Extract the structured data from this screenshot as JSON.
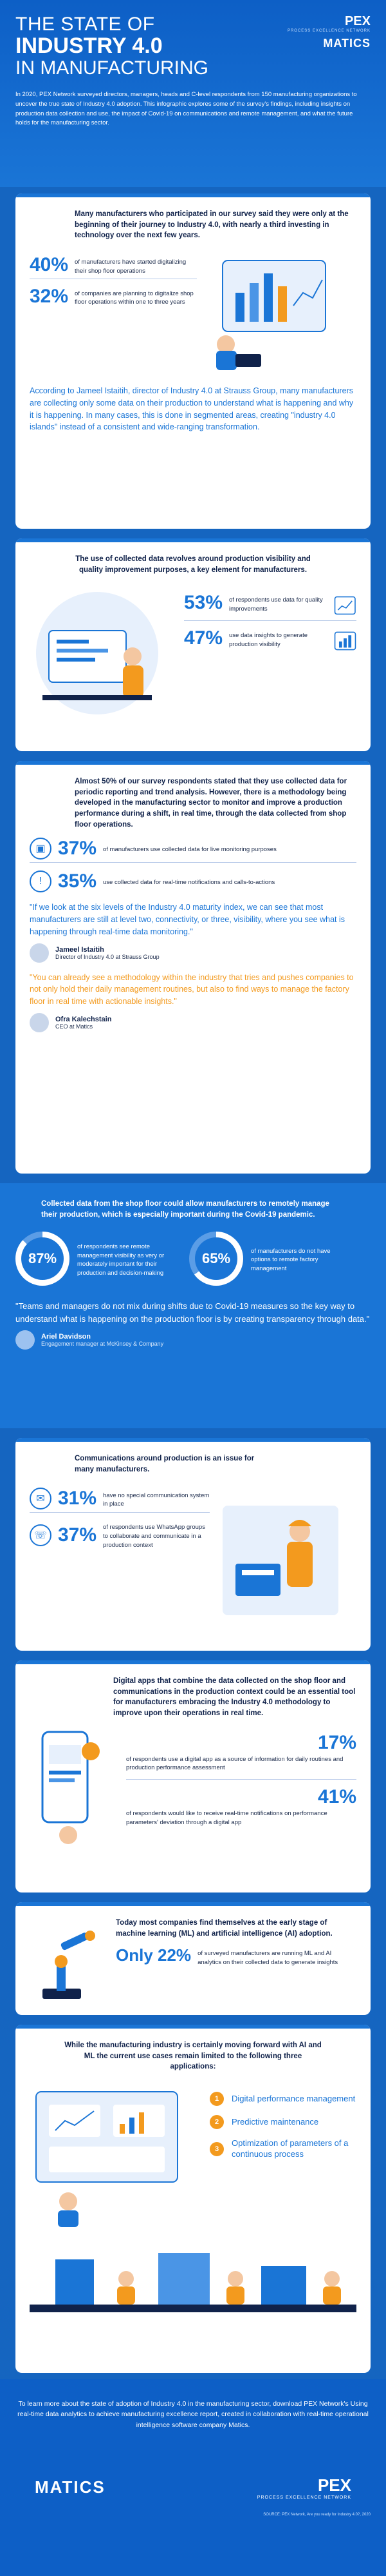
{
  "header": {
    "title_line1": "THE STATE OF",
    "title_line2": "INDUSTRY 4.0",
    "title_line3": "IN MANUFACTURING",
    "intro": "In 2020, PEX Network surveyed directors, managers, heads and C-level respondents from 150 manufacturing organizations to uncover the true state of Industry 4.0 adoption. This infographic explores some of the survey's findings, including insights on production data collection and use, the impact of Covid-19 on communications and remote management, and what the future holds for the manufacturing sector.",
    "logo_pex": "PEX",
    "logo_pex_sub": "PROCESS EXCELLENCE NETWORK",
    "logo_matics": "MATICS"
  },
  "section1": {
    "lead": "Many manufacturers who participated in our survey said they were only at the beginning of their journey to Industry 4.0, with nearly a third investing in technology over the next few years.",
    "stat1_num": "40%",
    "stat1_txt": "of manufacturers have started digitalizing their shop floor operations",
    "stat2_num": "32%",
    "stat2_txt": "of companies are planning to digitalize shop floor operations within one to three years",
    "body": "According to Jameel Istaitih, director of Industry 4.0 at Strauss Group, many manufacturers are collecting only some data on their production to understand what is happening and why it is happening. In many cases, this is done in segmented areas, creating \"industry 4.0 islands\" instead of a consistent and wide-ranging transformation."
  },
  "section2": {
    "lead": "The use of collected data revolves around production visibility and quality improvement purposes, a key element for manufacturers.",
    "stat1_num": "53%",
    "stat1_txt": "of respondents use data for quality improvements",
    "stat2_num": "47%",
    "stat2_txt": "use data insights to generate production visibility"
  },
  "section3": {
    "lead": "Almost 50% of our survey respondents stated that they use collected data for periodic reporting and trend analysis. However, there is a methodology being developed in the manufacturing sector to monitor and improve a production performance during a shift, in real time, through the data collected from shop floor operations.",
    "stat1_num": "37%",
    "stat1_txt": "of manufacturers use collected data for live monitoring purposes",
    "stat2_num": "35%",
    "stat2_txt": "use collected data for real-time notifications and calls-to-actions",
    "quote1": "\"If we look at the six levels of the Industry 4.0 maturity index, we can see that most manufacturers are still at level two, connectivity, or three, visibility, where you see what is happening through real-time data monitoring.\"",
    "quote1_name": "Jameel Istaitih",
    "quote1_role": "Director of Industry 4.0 at Strauss Group",
    "quote2": "\"You can already see a methodology within the industry that tries and pushes companies to not only hold their daily management routines, but also to find ways to manage the factory floor in real time with actionable insights.\"",
    "quote2_name": "Ofra Kalechstain",
    "quote2_role": "CEO at Matics"
  },
  "section4": {
    "lead": "Collected data from the shop floor could allow manufacturers to remotely manage their production, which is especially important during the Covid-19 pandemic.",
    "stat1_num": "87%",
    "stat1_txt": "of respondents see remote management visibility as very or moderately important for their production and decision-making",
    "stat2_num": "65%",
    "stat2_txt": "of manufacturers do not have options to remote factory management",
    "quote": "\"Teams and managers do not mix during shifts due to Covid-19 measures so the key way to understand what is happening on the production floor is by creating transparency through data.\"",
    "quote_name": "Ariel Davidson",
    "quote_role": "Engagement manager at McKinsey & Company"
  },
  "section5": {
    "lead": "Communications around production is an issue for many manufacturers.",
    "stat1_num": "31%",
    "stat1_txt": "have no special communication system in place",
    "stat2_num": "37%",
    "stat2_txt": "of respondents use WhatsApp groups to collaborate and communicate in a production context"
  },
  "section6": {
    "lead": "Digital apps that combine the data collected on the shop floor and communications in the production context could be an essential tool for manufacturers embracing the Industry 4.0 methodology to improve upon their operations in real time.",
    "stat1_num": "17%",
    "stat1_txt": "of respondents use a digital app as a source of information for daily routines and production performance assessment",
    "stat2_num": "41%",
    "stat2_txt": "of respondents would like to receive real-time notifications on performance parameters' deviation through a digital app"
  },
  "section7": {
    "lead": "Today most companies find themselves at the early stage of machine learning (ML) and artificial intelligence (AI) adoption.",
    "stat_num": "Only 22%",
    "stat_txt": "of surveyed manufacturers are running ML and AI analytics on their collected data to generate insights"
  },
  "section8": {
    "lead": "While the manufacturing industry is certainly moving forward with AI and ML the current use cases remain limited to the following three applications:",
    "apps": [
      {
        "num": "1",
        "label": "Digital performance management"
      },
      {
        "num": "2",
        "label": "Predictive maintenance"
      },
      {
        "num": "3",
        "label": "Optimization of parameters of a continuous process"
      }
    ]
  },
  "footer": {
    "text": "To learn more about the state of adoption of Industry 4.0 in the manufacturing sector, download PEX Network's Using real-time data analytics to achieve manufacturing excellence report, created in collaboration with real-time operational intelligence software company Matics.",
    "logo_matics": "MATICS",
    "logo_pex": "PEX",
    "logo_pex_sub": "PROCESS EXCELLENCE NETWORK",
    "source": "SOURCE: PEX Network, Are you ready for Industry 4.0?, 2020"
  },
  "colors": {
    "accent": "#1a75d6",
    "orange": "#f39a1e",
    "dark": "#10224a"
  }
}
